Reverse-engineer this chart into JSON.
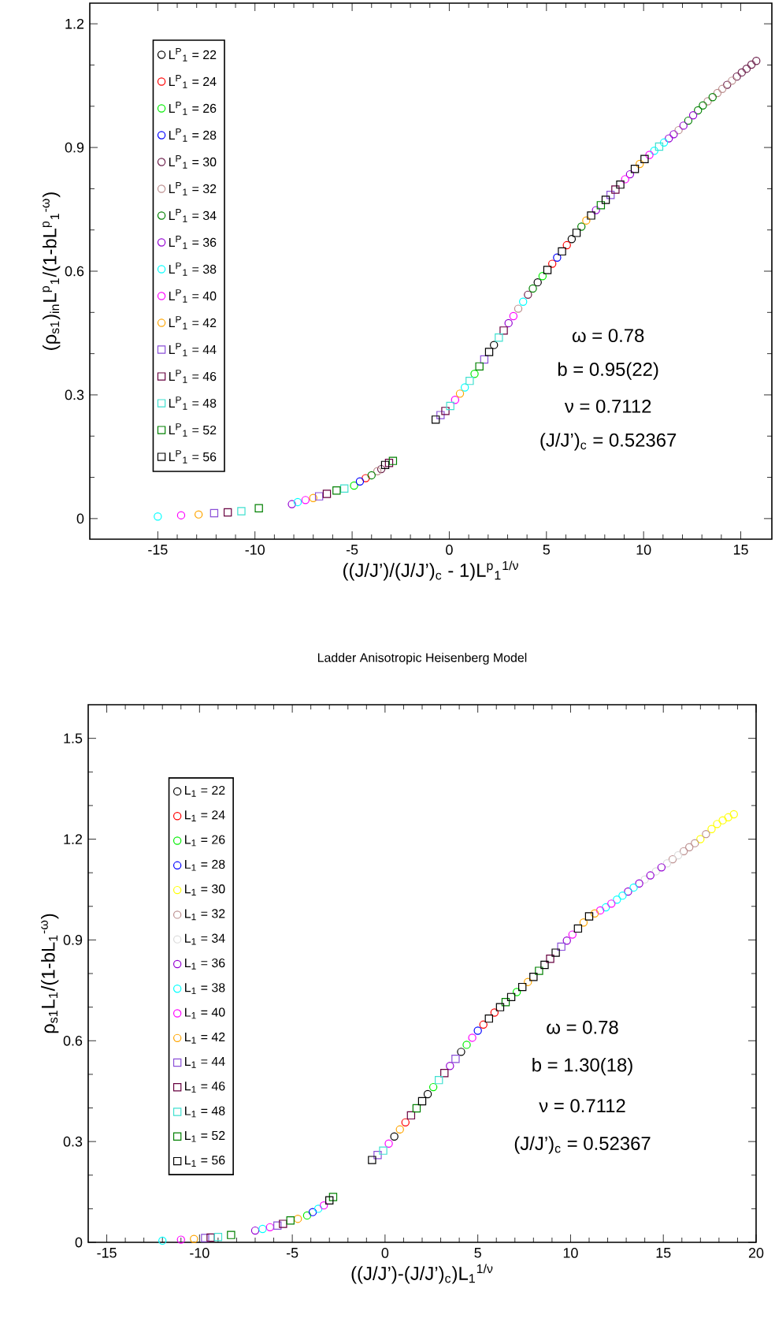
{
  "chart_data": [
    {
      "type": "scatter",
      "xlabel": "((J/J’)/(J/J’)$_{c}$ - 1)L$^{p}$$_{1}$$^{1/ν}$",
      "ylabel": "(ρ$_{s1}$)$_{in}$L$^{p}$$_{1}$/(1-bL$^{p}$$_{1}$$^{-ω}$)",
      "xlim": [
        -18.5,
        16.6
      ],
      "ylim": [
        -0.05,
        1.25
      ],
      "xticks": [
        -15,
        -10,
        -5,
        0,
        5,
        10,
        15
      ],
      "yticks": [
        0,
        0.3,
        0.6,
        0.9,
        1.2
      ],
      "legend": "top left",
      "annotations": [
        "ω = 0.78",
        "b = 0.95(22)",
        "ν = 0.7112",
        "(J/J’)$_{c}$ = 0.52367"
      ],
      "series": [
        {
          "name": "L$^{P}$$_{1}$ = 22",
          "color": "#000000",
          "marker": "circle",
          "x": [
            2.3,
            4.55,
            6.3
          ],
          "values": [
            0.421,
            0.573,
            0.678
          ]
        },
        {
          "name": "L$^{P}$$_{1}$ = 24",
          "color": "#ff0000",
          "marker": "circle",
          "x": [
            -4.3,
            5.3,
            6.05
          ],
          "values": [
            0.098,
            0.618,
            0.663
          ]
        },
        {
          "name": "L$^{P}$$_{1}$ = 26",
          "color": "#00ee00",
          "marker": "circle",
          "x": [
            -4.9,
            1.3,
            4.8
          ],
          "values": [
            0.08,
            0.351,
            0.588
          ]
        },
        {
          "name": "L$^{P}$$_{1}$ = 28",
          "color": "#0000ff",
          "marker": "circle",
          "x": [
            -4.6,
            5.55
          ],
          "values": [
            0.09,
            0.633
          ]
        },
        {
          "name": "L$^{P}$$_{1}$ = 30",
          "color": "#6b1e4a",
          "marker": "circle",
          "x": [
            -3.5,
            4.05,
            14.3,
            14.8,
            15.05,
            15.3,
            15.55,
            15.8
          ],
          "values": [
            0.12,
            0.543,
            1.052,
            1.072,
            1.082,
            1.091,
            1.101,
            1.11
          ]
        },
        {
          "name": "L$^{P}$$_{1}$ = 32",
          "color": "#bc8f8f",
          "marker": "circle",
          "x": [
            -3.7,
            3.55,
            11.8,
            13.3,
            13.8,
            14.05,
            14.55
          ],
          "values": [
            0.115,
            0.509,
            0.942,
            1.012,
            1.032,
            1.042,
            1.062
          ]
        },
        {
          "name": "L$^{P}$$_{1}$ = 34",
          "color": "#008000",
          "marker": "circle",
          "x": [
            -4.0,
            4.3,
            6.8,
            12.3,
            12.8,
            13.05,
            13.55
          ],
          "values": [
            0.105,
            0.558,
            0.708,
            0.965,
            0.99,
            1.002,
            1.022
          ]
        },
        {
          "name": "L$^{P}$$_{1}$ = 36",
          "color": "#9400d3",
          "marker": "circle",
          "x": [
            -8.1,
            3.05,
            7.55,
            9.3,
            11.3,
            11.55,
            12.05,
            12.55
          ],
          "values": [
            0.035,
            0.474,
            0.748,
            0.835,
            0.922,
            0.932,
            0.953,
            0.978
          ]
        },
        {
          "name": "L$^{P}$$_{1}$ = 38",
          "color": "#00ffff",
          "marker": "circle",
          "x": [
            -15,
            -7.8,
            0.8,
            3.8,
            10.55,
            11.05
          ],
          "values": [
            0.005,
            0.04,
            0.318,
            0.526,
            0.892,
            0.912
          ]
        },
        {
          "name": "L$^{P}$$_{1}$ = 40",
          "color": "#ff00ff",
          "marker": "circle",
          "x": [
            -13.8,
            -7.4,
            0.3,
            3.3,
            9.05,
            10.3
          ],
          "values": [
            0.008,
            0.045,
            0.288,
            0.491,
            0.823,
            0.882
          ]
        },
        {
          "name": "L$^{P}$$_{1}$ = 42",
          "color": "#ffa500",
          "marker": "circle",
          "x": [
            -12.9,
            -7.0,
            0.55,
            7.05,
            9.8
          ],
          "values": [
            0.01,
            0.05,
            0.303,
            0.723,
            0.86
          ]
        },
        {
          "name": "L$^{P}$$_{1}$ = 44",
          "color": "#8a4fd8",
          "marker": "square",
          "x": [
            -12.1,
            -6.7,
            -0.45,
            1.8,
            8.3
          ],
          "values": [
            0.013,
            0.054,
            0.251,
            0.386,
            0.785
          ]
        },
        {
          "name": "L$^{P}$$_{1}$ = 46",
          "color": "#67003f",
          "marker": "square",
          "x": [
            -11.4,
            -6.3,
            -3.1,
            -0.2,
            2.8,
            8.55
          ],
          "values": [
            0.015,
            0.06,
            0.135,
            0.261,
            0.456,
            0.798
          ]
        },
        {
          "name": "L$^{P}$$_{1}$ = 48",
          "color": "#40e0d0",
          "marker": "square",
          "x": [
            -10.7,
            -5.4,
            0.05,
            1.05,
            2.55,
            10.8
          ],
          "values": [
            0.018,
            0.073,
            0.273,
            0.334,
            0.439,
            0.902
          ]
        },
        {
          "name": "L$^{P}$$_{1}$ = 52",
          "color": "#008000",
          "marker": "square",
          "x": [
            -9.8,
            -5.8,
            -2.9,
            1.55,
            7.8
          ],
          "values": [
            0.025,
            0.068,
            0.14,
            0.369,
            0.76
          ]
        },
        {
          "name": "L$^{P}$$_{1}$ = 56",
          "color": "#000000",
          "marker": "square",
          "x": [
            -3.3,
            -0.7,
            2.05,
            5.05,
            5.8,
            6.55,
            7.3,
            8.05,
            8.8,
            9.55,
            10.05
          ],
          "values": [
            0.13,
            0.24,
            0.404,
            0.603,
            0.648,
            0.693,
            0.735,
            0.773,
            0.81,
            0.848,
            0.872
          ]
        }
      ]
    },
    {
      "type": "scatter",
      "title": "Ladder Anisotropic Heisenberg Model",
      "xlabel": "((J/J’)-(J/J’)$_{c}$)L$_{1}$$^{1/ν}$",
      "ylabel": "ρ$_{s1}$L$_{1}$/(1-bL$_{1}$$^{-ω}$)",
      "xlim": [
        -16,
        20
      ],
      "ylim": [
        0,
        1.6
      ],
      "xticks": [
        -15,
        -10,
        -5,
        0,
        5,
        10,
        15,
        20
      ],
      "yticks": [
        0,
        0.3,
        0.6,
        0.9,
        1.2,
        1.5
      ],
      "legend": "left",
      "annotations": [
        "ω = 0.78",
        "b = 1.30(18)",
        "ν = 0.7112",
        "(J/J’)$_{c}$ = 0.52367"
      ],
      "series": [
        {
          "name": "L$_{1}$ = 22",
          "color": "#000000",
          "marker": "circle",
          "x": [
            0.5,
            2.3,
            4.1
          ],
          "values": [
            0.315,
            0.441,
            0.567
          ]
        },
        {
          "name": "L$_{1}$ = 24",
          "color": "#ff0000",
          "marker": "circle",
          "x": [
            1.1,
            5.3,
            5.9
          ],
          "values": [
            0.357,
            0.648,
            0.684
          ]
        },
        {
          "name": "L$_{1}$ = 26",
          "color": "#00ee00",
          "marker": "circle",
          "x": [
            -4.2,
            2.6,
            4.4,
            7.1
          ],
          "values": [
            0.08,
            0.462,
            0.588,
            0.745
          ]
        },
        {
          "name": "L$_{1}$ = 28",
          "color": "#0000ff",
          "marker": "circle",
          "x": [
            -3.9,
            5.0
          ],
          "values": [
            0.09,
            0.63
          ]
        },
        {
          "name": "L$_{1}$ = 30",
          "color": "#ffff00",
          "marker": "circle",
          "x": [
            17.0,
            17.6,
            17.9,
            18.2,
            18.5,
            18.8
          ],
          "values": [
            1.2,
            1.23,
            1.245,
            1.256,
            1.265,
            1.274
          ]
        },
        {
          "name": "L$_{1}$ = 32",
          "color": "#bc8f8f",
          "marker": "circle",
          "x": [
            15.5,
            16.1,
            16.4,
            16.7,
            17.3
          ],
          "values": [
            1.14,
            1.164,
            1.176,
            1.188,
            1.215
          ]
        },
        {
          "name": "L$_{1}$ = 34",
          "color": "#dcdcdc",
          "marker": "circle",
          "x": [
            14.0,
            14.6,
            15.2,
            15.8
          ],
          "values": [
            1.08,
            1.104,
            1.128,
            1.152
          ]
        },
        {
          "name": "L$_{1}$ = 36",
          "color": "#9400d3",
          "marker": "circle",
          "x": [
            -7.0,
            3.5,
            9.8,
            13.1,
            13.7,
            14.3,
            14.9
          ],
          "values": [
            0.035,
            0.525,
            0.898,
            1.044,
            1.068,
            1.092,
            1.116
          ]
        },
        {
          "name": "L$_{1}$ = 38",
          "color": "#00ffff",
          "marker": "circle",
          "x": [
            -12,
            -6.6,
            -3.6,
            11.9,
            12.5,
            12.8,
            13.4
          ],
          "values": [
            0.005,
            0.04,
            0.1,
            0.997,
            1.02,
            1.032,
            1.056
          ]
        },
        {
          "name": "L$_{1}$ = 40",
          "color": "#ff00ff",
          "marker": "circle",
          "x": [
            -11,
            -6.2,
            -3.3,
            0.2,
            4.7,
            10.1,
            11.6,
            12.2
          ],
          "values": [
            0.008,
            0.045,
            0.11,
            0.294,
            0.609,
            0.916,
            0.988,
            1.008
          ]
        },
        {
          "name": "L$_{1}$ = 42",
          "color": "#ffa500",
          "marker": "circle",
          "x": [
            -10.3,
            -4.7,
            0.8,
            7.7,
            10.7,
            11.3
          ],
          "values": [
            0.01,
            0.07,
            0.336,
            0.775,
            0.952,
            0.979
          ]
        },
        {
          "name": "L$_{1}$ = 44",
          "color": "#8a4fd8",
          "marker": "square",
          "x": [
            -9.7,
            -5.8,
            -0.4,
            3.8,
            9.5
          ],
          "values": [
            0.013,
            0.05,
            0.26,
            0.546,
            0.88
          ]
        },
        {
          "name": "L$_{1}$ = 46",
          "color": "#67003f",
          "marker": "square",
          "x": [
            -9.4,
            -5.5,
            1.4,
            3.2,
            8.9
          ],
          "values": [
            0.014,
            0.055,
            0.378,
            0.504,
            0.844
          ]
        },
        {
          "name": "L$_{1}$ = 48",
          "color": "#40e0d0",
          "marker": "square",
          "x": [
            -9.0,
            -0.1,
            2.9
          ],
          "values": [
            0.016,
            0.273,
            0.483
          ]
        },
        {
          "name": "L$_{1}$ = 52",
          "color": "#008000",
          "marker": "square",
          "x": [
            -8.3,
            -5.1,
            -2.8,
            1.7,
            6.5,
            8.3
          ],
          "values": [
            0.022,
            0.065,
            0.135,
            0.399,
            0.715,
            0.808
          ]
        },
        {
          "name": "L$_{1}$ = 56",
          "color": "#000000",
          "marker": "square",
          "x": [
            -3.0,
            -0.7,
            2.0,
            5.6,
            6.2,
            6.8,
            7.4,
            8.0,
            8.6,
            9.2,
            10.4,
            11.0
          ],
          "values": [
            0.125,
            0.245,
            0.42,
            0.666,
            0.7,
            0.73,
            0.76,
            0.79,
            0.826,
            0.862,
            0.934,
            0.97
          ]
        }
      ]
    }
  ]
}
